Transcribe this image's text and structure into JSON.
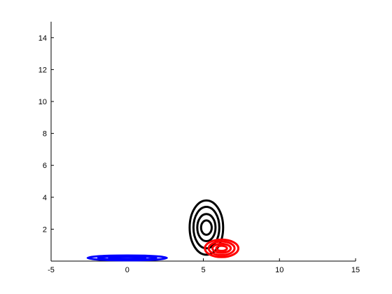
{
  "chart_data": {
    "type": "contour",
    "title": "",
    "xlabel": "",
    "ylabel": "",
    "xlim": [
      -5,
      15
    ],
    "ylim": [
      0,
      15
    ],
    "xticks": [
      -5,
      0,
      5,
      10,
      15
    ],
    "yticks": [
      2,
      4,
      6,
      8,
      10,
      12,
      14
    ],
    "grid": false,
    "legend": "none",
    "series": [
      {
        "color": "#0000ff",
        "center": [
          0,
          0.2
        ],
        "levels": [
          {
            "rx": 2.6,
            "ry": 0.15
          },
          {
            "rx": 1.9,
            "ry": 0.11
          },
          {
            "rx": 1.2,
            "ry": 0.07
          }
        ]
      },
      {
        "color": "#000000",
        "center": [
          5.2,
          2.1
        ],
        "levels": [
          {
            "rx": 1.1,
            "ry": 1.7
          },
          {
            "rx": 0.85,
            "ry": 1.3
          },
          {
            "rx": 0.6,
            "ry": 0.85
          },
          {
            "rx": 0.35,
            "ry": 0.45
          }
        ]
      },
      {
        "color": "#ff0000",
        "center": [
          6.2,
          0.8
        ],
        "levels": [
          {
            "rx": 1.1,
            "ry": 0.55
          },
          {
            "rx": 0.85,
            "ry": 0.42
          },
          {
            "rx": 0.6,
            "ry": 0.28
          },
          {
            "rx": 0.35,
            "ry": 0.16
          }
        ]
      }
    ]
  }
}
